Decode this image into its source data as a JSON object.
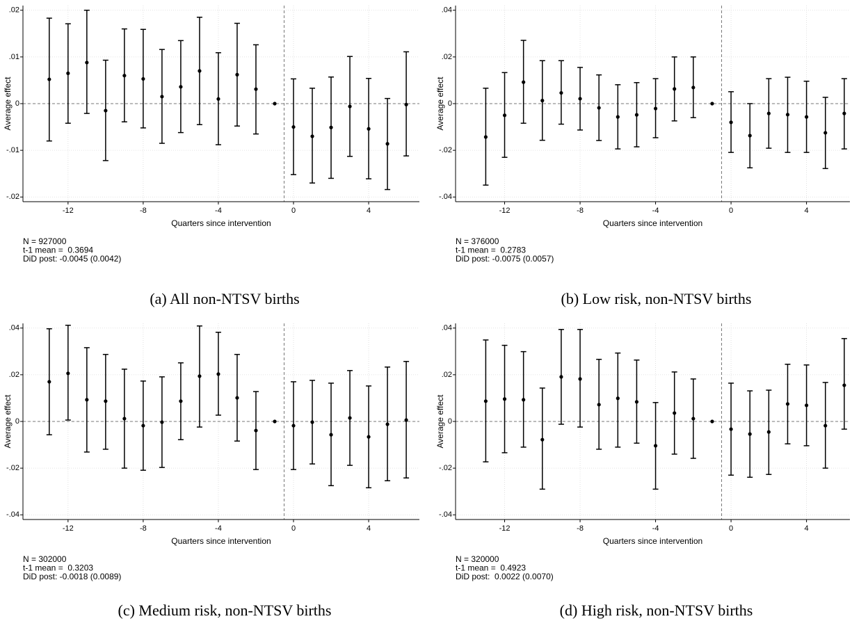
{
  "chart_data": [
    {
      "type": "errorbar",
      "caption": "(a) All non-NTSV births",
      "ylabel": "Average effect",
      "xlabel": "Quarters since intervention",
      "notes": [
        "N = 927000",
        "t-1 mean =  0.3694",
        "DiD post: -0.0045 (0.0042)"
      ],
      "x": [
        -13,
        -12,
        -11,
        -10,
        -9,
        -8,
        -7,
        -6,
        -5,
        -4,
        -3,
        -2,
        -1,
        0,
        1,
        2,
        3,
        4,
        5,
        6
      ],
      "values": [
        0.0052,
        0.0065,
        0.0088,
        -0.0015,
        0.006,
        0.0053,
        0.0015,
        0.0036,
        0.007,
        0.001,
        0.0062,
        0.0031,
        0,
        -0.005,
        -0.007,
        -0.0051,
        -0.0006,
        -0.0054,
        -0.0086,
        -0.0002
      ],
      "lower": [
        -0.008,
        -0.0042,
        -0.0021,
        -0.0122,
        -0.0039,
        -0.0052,
        -0.0085,
        -0.0062,
        -0.0045,
        -0.0088,
        -0.0048,
        -0.0065,
        null,
        -0.0152,
        -0.017,
        -0.016,
        -0.0113,
        -0.0161,
        -0.0184,
        -0.0112
      ],
      "upper": [
        0.0183,
        0.0171,
        0.02,
        0.0093,
        0.016,
        0.0159,
        0.0116,
        0.0135,
        0.0185,
        0.0109,
        0.0172,
        0.0126,
        null,
        0.0053,
        0.0033,
        0.0057,
        0.0101,
        0.0054,
        0.0011,
        0.0111
      ],
      "color": "#000000",
      "xlim": [
        -14.4,
        6.7
      ],
      "ylim": [
        -0.021,
        0.021
      ],
      "xticks": [
        -12,
        -8,
        -4,
        0,
        4
      ],
      "yticks": [
        {
          "value": -0.02,
          "label": "-.02"
        },
        {
          "value": -0.01,
          "label": "-.01"
        },
        0,
        {
          "value": 0.01,
          "label": ".01"
        },
        {
          "value": 0.02,
          "label": ".02"
        }
      ],
      "grid": true,
      "hline": 0,
      "vline": -0.5
    },
    {
      "type": "errorbar",
      "caption": "(b) Low risk, non-NTSV births",
      "ylabel": "Average effect",
      "xlabel": "Quarters since intervention",
      "notes": [
        "N = 376000",
        "t-1 mean =  0.2783",
        "DiD post: -0.0075 (0.0057)"
      ],
      "x": [
        -13,
        -12,
        -11,
        -10,
        -9,
        -8,
        -7,
        -6,
        -5,
        -4,
        -3,
        -2,
        -1,
        0,
        1,
        2,
        3,
        4,
        5,
        6
      ],
      "values": [
        -0.0143,
        -0.005,
        0.0092,
        0.0013,
        0.0046,
        0.0021,
        -0.0018,
        -0.0057,
        -0.0048,
        -0.0021,
        0.0063,
        0.0069,
        0,
        -0.008,
        -0.0137,
        -0.0042,
        -0.0047,
        -0.0057,
        -0.0125,
        -0.0042
      ],
      "lower": [
        -0.0349,
        -0.023,
        -0.0084,
        -0.0157,
        -0.0088,
        -0.0113,
        -0.0158,
        -0.0194,
        -0.0185,
        -0.0146,
        -0.0074,
        -0.006,
        null,
        -0.0209,
        -0.0275,
        -0.0191,
        -0.0209,
        -0.0209,
        -0.0278,
        -0.0194
      ],
      "upper": [
        0.0066,
        0.0133,
        0.0271,
        0.0184,
        0.0184,
        0.0155,
        0.0123,
        0.0081,
        0.009,
        0.0107,
        0.02,
        0.02,
        null,
        0.0051,
        0.0,
        0.0107,
        0.0113,
        0.0096,
        0.0027,
        0.0107
      ],
      "color": "#000000",
      "xlim": [
        -14.6,
        6.3
      ],
      "ylim": [
        -0.042,
        0.042
      ],
      "xticks": [
        -12,
        -8,
        -4,
        0,
        4
      ],
      "yticks": [
        {
          "value": -0.04,
          "label": "-.04"
        },
        {
          "value": -0.02,
          "label": "-.02"
        },
        0,
        {
          "value": 0.02,
          "label": ".02"
        },
        {
          "value": 0.04,
          "label": ".04"
        }
      ],
      "grid": true,
      "hline": 0,
      "vline": -0.5
    },
    {
      "type": "errorbar",
      "caption": "(c) Medium risk, non-NTSV births",
      "ylabel": "Average effect",
      "xlabel": "Quarters since intervention",
      "notes": [
        "N = 302000",
        "t-1 mean =  0.3203",
        "DiD post: -0.0018 (0.0089)"
      ],
      "x": [
        -13,
        -12,
        -11,
        -10,
        -9,
        -8,
        -7,
        -6,
        -5,
        -4,
        -3,
        -2,
        -1,
        0,
        1,
        2,
        3,
        4,
        5,
        6
      ],
      "values": [
        0.017,
        0.0206,
        0.0093,
        0.0087,
        0.0012,
        -0.0018,
        -0.0003,
        0.0087,
        0.0194,
        0.0203,
        0.0101,
        -0.0039,
        0,
        -0.0018,
        -0.0003,
        -0.0057,
        0.0015,
        -0.0066,
        -0.0012,
        0.0006
      ],
      "lower": [
        -0.0057,
        0.0006,
        -0.0131,
        -0.0119,
        -0.02,
        -0.0209,
        -0.0197,
        -0.0078,
        -0.0024,
        0.0027,
        -0.0084,
        -0.0206,
        null,
        -0.0206,
        -0.0182,
        -0.0275,
        -0.0188,
        -0.0284,
        -0.0254,
        -0.0242
      ],
      "upper": [
        0.0397,
        0.0412,
        0.0316,
        0.0287,
        0.0224,
        0.0173,
        0.0191,
        0.0251,
        0.0409,
        0.0382,
        0.0287,
        0.0128,
        null,
        0.017,
        0.0176,
        0.0164,
        0.0218,
        0.0152,
        0.0233,
        0.0257
      ],
      "color": "#000000",
      "xlim": [
        -14.4,
        6.7
      ],
      "ylim": [
        -0.042,
        0.042
      ],
      "xticks": [
        -12,
        -8,
        -4,
        0,
        4
      ],
      "yticks": [
        {
          "value": -0.04,
          "label": "-.04"
        },
        {
          "value": -0.02,
          "label": "-.02"
        },
        0,
        {
          "value": 0.02,
          "label": ".02"
        },
        {
          "value": 0.04,
          "label": ".04"
        }
      ],
      "grid": true,
      "hline": 0,
      "vline": -0.5
    },
    {
      "type": "errorbar",
      "caption": "(d) High risk, non-NTSV births",
      "ylabel": "Average effect",
      "xlabel": "Quarters since intervention",
      "notes": [
        "N = 320000",
        "t-1 mean =  0.4923",
        "DiD post:  0.0022 (0.0070)"
      ],
      "x": [
        -13,
        -12,
        -11,
        -10,
        -9,
        -8,
        -7,
        -6,
        -5,
        -4,
        -3,
        -2,
        -1,
        0,
        1,
        2,
        3,
        4,
        5,
        6
      ],
      "values": [
        0.0087,
        0.0096,
        0.0093,
        -0.0078,
        0.0191,
        0.0182,
        0.0072,
        0.0099,
        0.0084,
        -0.0104,
        0.0036,
        0.0012,
        0,
        -0.0033,
        -0.0054,
        -0.0045,
        0.0075,
        0.0069,
        -0.0018,
        0.0155
      ],
      "lower": [
        -0.0173,
        -0.0134,
        -0.011,
        -0.029,
        -0.0012,
        -0.0024,
        -0.0119,
        -0.011,
        -0.0093,
        -0.029,
        -0.014,
        -0.0158,
        null,
        -0.023,
        -0.0239,
        -0.0227,
        -0.0096,
        -0.0104,
        -0.02,
        -0.0033
      ],
      "upper": [
        0.0349,
        0.0326,
        0.0299,
        0.0143,
        0.0394,
        0.0394,
        0.0266,
        0.0293,
        0.0263,
        0.0081,
        0.0212,
        0.0182,
        null,
        0.0164,
        0.0131,
        0.0134,
        0.0245,
        0.0242,
        0.0167,
        0.0355
      ],
      "color": "#000000",
      "xlim": [
        -14.6,
        6.3
      ],
      "ylim": [
        -0.042,
        0.042
      ],
      "xticks": [
        -12,
        -8,
        -4,
        0,
        4
      ],
      "yticks": [
        {
          "value": -0.04,
          "label": "-.04"
        },
        {
          "value": -0.02,
          "label": "-.02"
        },
        0,
        {
          "value": 0.02,
          "label": ".02"
        },
        {
          "value": 0.04,
          "label": ".04"
        }
      ],
      "grid": true,
      "hline": 0,
      "vline": -0.5
    }
  ]
}
